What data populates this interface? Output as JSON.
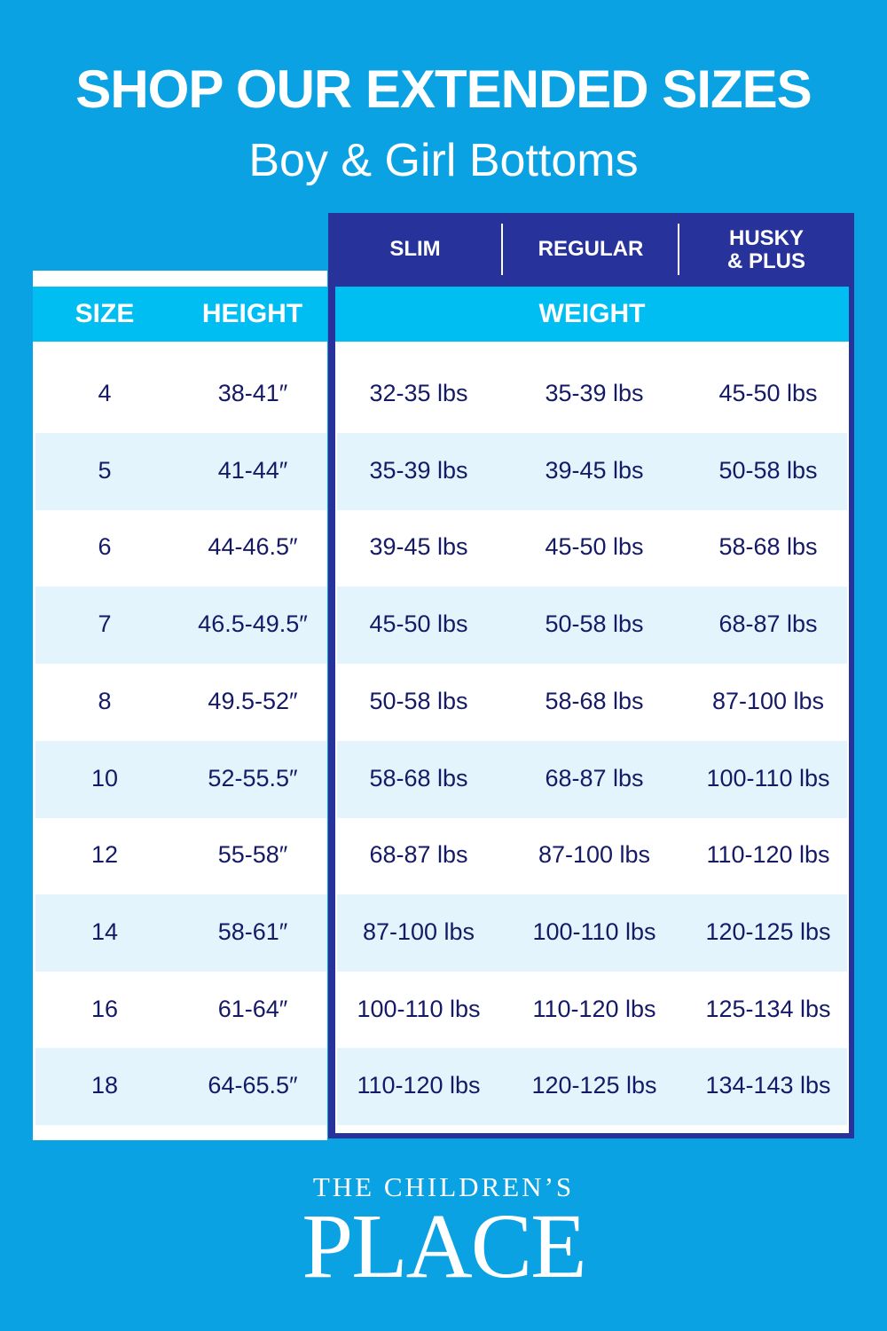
{
  "header": {
    "title": "SHOP OUR EXTENDED SIZES",
    "subtitle": "Boy & Girl Bottoms"
  },
  "table": {
    "fit_headers": [
      "SLIM",
      "REGULAR",
      "HUSKY\n& PLUS"
    ],
    "size_label": "SIZE",
    "height_label": "HEIGHT",
    "weight_label": "WEIGHT",
    "rows": [
      {
        "size": "4",
        "height": "38-41″",
        "slim": "32-35 lbs",
        "regular": "35-39 lbs",
        "husky": "45-50 lbs"
      },
      {
        "size": "5",
        "height": "41-44″",
        "slim": "35-39 lbs",
        "regular": "39-45 lbs",
        "husky": "50-58 lbs"
      },
      {
        "size": "6",
        "height": "44-46.5″",
        "slim": "39-45 lbs",
        "regular": "45-50 lbs",
        "husky": "58-68 lbs"
      },
      {
        "size": "7",
        "height": "46.5-49.5″",
        "slim": "45-50 lbs",
        "regular": "50-58 lbs",
        "husky": "68-87 lbs"
      },
      {
        "size": "8",
        "height": "49.5-52″",
        "slim": "50-58 lbs",
        "regular": "58-68 lbs",
        "husky": "87-100 lbs"
      },
      {
        "size": "10",
        "height": "52-55.5″",
        "slim": "58-68 lbs",
        "regular": "68-87 lbs",
        "husky": "100-110 lbs"
      },
      {
        "size": "12",
        "height": "55-58″",
        "slim": "68-87 lbs",
        "regular": "87-100 lbs",
        "husky": "110-120 lbs"
      },
      {
        "size": "14",
        "height": "58-61″",
        "slim": "87-100 lbs",
        "regular": "100-110 lbs",
        "husky": "120-125 lbs"
      },
      {
        "size": "16",
        "height": "61-64″",
        "slim": "100-110 lbs",
        "regular": "110-120 lbs",
        "husky": "125-134 lbs"
      },
      {
        "size": "18",
        "height": "64-65.5″",
        "slim": "110-120 lbs",
        "regular": "120-125 lbs",
        "husky": "134-143 lbs"
      }
    ]
  },
  "brand": {
    "line1": "THE CHILDREN’S",
    "line2": "PLACE"
  },
  "colors": {
    "background": "#0aa2e2",
    "navy": "#27339a",
    "header_cyan": "#00bef2",
    "row_alt": "#e3f4fc",
    "text": "#151a66"
  }
}
